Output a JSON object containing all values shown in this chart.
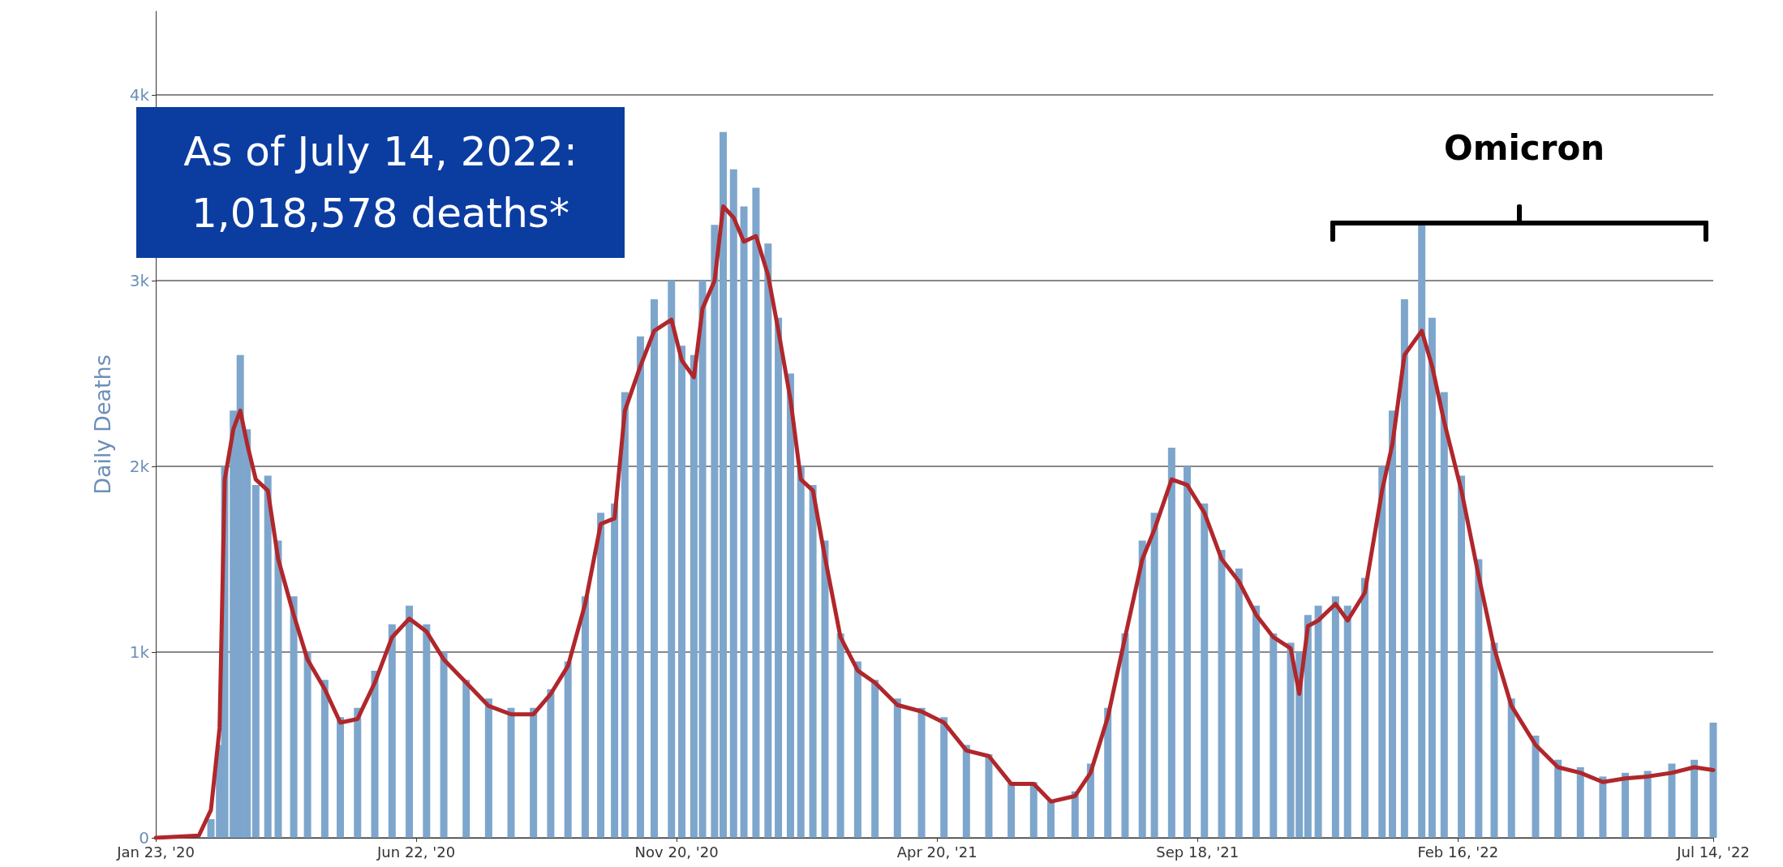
{
  "chart_data": {
    "type": "bar",
    "ylabel": "Daily Deaths",
    "x": [
      "2020-01-23",
      "2020-02-17",
      "2020-02-24",
      "2020-02-29",
      "2020-03-03",
      "2020-03-08",
      "2020-03-12",
      "2020-03-16",
      "2020-03-21",
      "2020-03-28",
      "2020-04-03",
      "2020-04-12",
      "2020-04-20",
      "2020-04-30",
      "2020-05-09",
      "2020-05-19",
      "2020-05-29",
      "2020-06-08",
      "2020-06-18",
      "2020-06-28",
      "2020-07-08",
      "2020-07-21",
      "2020-08-03",
      "2020-08-16",
      "2020-08-29",
      "2020-09-08",
      "2020-09-18",
      "2020-09-28",
      "2020-10-07",
      "2020-10-15",
      "2020-10-21",
      "2020-10-30",
      "2020-11-07",
      "2020-11-17",
      "2020-11-23",
      "2020-11-30",
      "2020-12-05",
      "2020-12-12",
      "2020-12-17",
      "2020-12-23",
      "2020-12-29",
      "2021-01-05",
      "2021-01-12",
      "2021-01-18",
      "2021-01-25",
      "2021-01-31",
      "2021-02-07",
      "2021-02-14",
      "2021-02-23",
      "2021-03-05",
      "2021-03-15",
      "2021-03-28",
      "2021-04-11",
      "2021-04-24",
      "2021-05-07",
      "2021-05-20",
      "2021-06-02",
      "2021-06-15",
      "2021-06-25",
      "2021-07-09",
      "2021-07-18",
      "2021-07-28",
      "2021-08-07",
      "2021-08-17",
      "2021-08-24",
      "2021-09-03",
      "2021-09-12",
      "2021-09-22",
      "2021-10-02",
      "2021-10-12",
      "2021-10-22",
      "2021-11-01",
      "2021-11-11",
      "2021-11-16",
      "2021-11-21",
      "2021-11-27",
      "2021-12-07",
      "2021-12-14",
      "2021-12-24",
      "2022-01-03",
      "2022-01-09",
      "2022-01-16",
      "2022-01-26",
      "2022-02-01",
      "2022-02-08",
      "2022-02-18",
      "2022-02-28",
      "2022-03-09",
      "2022-03-19",
      "2022-04-02",
      "2022-04-15",
      "2022-04-28",
      "2022-05-11",
      "2022-05-24",
      "2022-06-06",
      "2022-06-20",
      "2022-07-03",
      "2022-07-14"
    ],
    "series": [
      {
        "color": "#7ea6cc",
        "values": [
          0,
          0,
          100,
          500,
          2000,
          2300,
          2600,
          2200,
          1900,
          1950,
          1600,
          1300,
          1000,
          850,
          650,
          700,
          900,
          1150,
          1250,
          1150,
          1000,
          850,
          750,
          700,
          700,
          800,
          950,
          1300,
          1750,
          1800,
          2400,
          2700,
          2900,
          3000,
          2650,
          2600,
          3000,
          3300,
          3800,
          3600,
          3400,
          3500,
          3200,
          2800,
          2500,
          2000,
          1900,
          1600,
          1100,
          950,
          850,
          750,
          700,
          650,
          500,
          450,
          300,
          300,
          200,
          250,
          400,
          700,
          1100,
          1600,
          1750,
          2100,
          2000,
          1800,
          1550,
          1450,
          1250,
          1100,
          1050,
          1000,
          1200,
          1250,
          1300,
          1250,
          1400,
          2000,
          2300,
          2900,
          3300,
          2800,
          2400,
          1950,
          1500,
          1050,
          750,
          550,
          420,
          380,
          330,
          350,
          360,
          400,
          420,
          620
        ]
      },
      {
        "type": "line",
        "color": "#b0272b",
        "values": [
          0,
          12,
          150,
          590,
          1930,
          2200,
          2300,
          2120,
          1930,
          1870,
          1500,
          1200,
          960,
          800,
          620,
          640,
          835,
          1080,
          1180,
          1110,
          960,
          835,
          710,
          665,
          665,
          775,
          925,
          1260,
          1690,
          1720,
          2300,
          2540,
          2730,
          2790,
          2570,
          2480,
          2850,
          3000,
          3400,
          3340,
          3210,
          3240,
          3030,
          2730,
          2360,
          1930,
          1870,
          1510,
          1080,
          900,
          835,
          715,
          680,
          620,
          470,
          440,
          290,
          290,
          195,
          225,
          350,
          650,
          1080,
          1500,
          1660,
          1930,
          1900,
          1750,
          1500,
          1380,
          1200,
          1080,
          1020,
          775,
          1140,
          1170,
          1260,
          1170,
          1320,
          1870,
          2120,
          2600,
          2730,
          2540,
          2240,
          1870,
          1410,
          1020,
          710,
          500,
          380,
          350,
          300,
          320,
          330,
          350,
          380,
          365
        ]
      }
    ],
    "xlim": [
      "2020-01-23",
      "2022-07-14"
    ],
    "xticks": [
      {
        "value": "2020-01-23",
        "label": "Jan 23, '20"
      },
      {
        "value": "2020-06-22",
        "label": "Jun 22, '20"
      },
      {
        "value": "2020-11-20",
        "label": "Nov 20, '20"
      },
      {
        "value": "2021-04-20",
        "label": "Apr 20, '21"
      },
      {
        "value": "2021-09-18",
        "label": "Sep 18, '21"
      },
      {
        "value": "2022-02-16",
        "label": "Feb 16, '22"
      },
      {
        "value": "2022-07-14",
        "label": "Jul 14, '22"
      }
    ],
    "ylim": [
      0,
      4450
    ],
    "yticks": [
      {
        "value": 0,
        "label": "0"
      },
      {
        "value": 1000,
        "label": "1k"
      },
      {
        "value": 2000,
        "label": "2k"
      },
      {
        "value": 3000,
        "label": "3k"
      },
      {
        "value": 4000,
        "label": "4k"
      }
    ],
    "grid": "y",
    "marker": "none",
    "line_style": "solid",
    "annotations": [
      "As of July 14, 2022:\n1,018,578 deaths*",
      "Omicron"
    ]
  }
}
